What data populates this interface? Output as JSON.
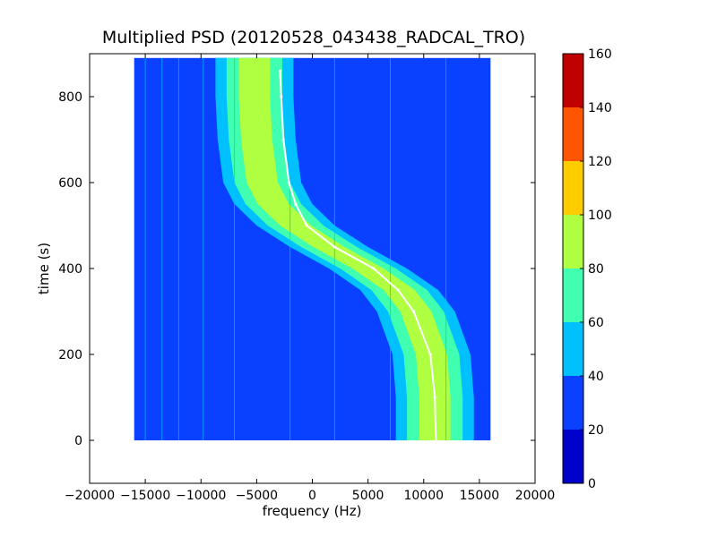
{
  "chart_data": {
    "type": "heatmap",
    "title": "Multiplied PSD (20120528_043438_RADCAL_TRO)",
    "xlabel": "frequency (Hz)",
    "ylabel": "time (s)",
    "xlim": [
      -20000,
      20000
    ],
    "ylim": [
      -100,
      900
    ],
    "x_ticks": [
      -20000,
      -15000,
      -10000,
      -5000,
      0,
      5000,
      10000,
      15000,
      20000
    ],
    "x_tick_labels": [
      "−20000",
      "−15000",
      "−10000",
      "−5000",
      "0",
      "5000",
      "10000",
      "15000",
      "20000"
    ],
    "y_ticks": [
      0,
      200,
      400,
      600,
      800
    ],
    "y_tick_labels": [
      "0",
      "200",
      "400",
      "600",
      "800"
    ],
    "data_extent": {
      "freq": [
        -16000,
        16000
      ],
      "time": [
        0,
        890
      ]
    },
    "background_level": 30,
    "band": {
      "description": "Doppler-shifted carrier trace (S-curve)",
      "center_freq_at_time": [
        {
          "time": 0,
          "freq": 11000
        },
        {
          "time": 100,
          "freq": 11000
        },
        {
          "time": 200,
          "freq": 10700
        },
        {
          "time": 300,
          "freq": 9300
        },
        {
          "time": 350,
          "freq": 7800
        },
        {
          "time": 400,
          "freq": 5000
        },
        {
          "time": 450,
          "freq": 1500
        },
        {
          "time": 500,
          "freq": -1500
        },
        {
          "time": 550,
          "freq": -3500
        },
        {
          "time": 600,
          "freq": -4500
        },
        {
          "time": 700,
          "freq": -5000
        },
        {
          "time": 800,
          "freq": -5200
        },
        {
          "time": 890,
          "freq": -5200
        }
      ],
      "levels": [
        {
          "half_width_hz": 3500,
          "level": 50
        },
        {
          "half_width_hz": 2500,
          "level": 70
        },
        {
          "half_width_hz": 1400,
          "level": 90
        }
      ]
    },
    "predicted_track": [
      {
        "time": 0,
        "freq": 11100
      },
      {
        "time": 100,
        "freq": 11000
      },
      {
        "time": 200,
        "freq": 10600
      },
      {
        "time": 300,
        "freq": 9100
      },
      {
        "time": 350,
        "freq": 7700
      },
      {
        "time": 400,
        "freq": 5500
      },
      {
        "time": 450,
        "freq": 2000
      },
      {
        "time": 500,
        "freq": -500
      },
      {
        "time": 550,
        "freq": -1500
      },
      {
        "time": 600,
        "freq": -2100
      },
      {
        "time": 700,
        "freq": -2600
      },
      {
        "time": 800,
        "freq": -2800
      },
      {
        "time": 860,
        "freq": -2900
      }
    ],
    "vertical_lines_hz": [
      -15000,
      -13500,
      -12000,
      -9800,
      -7000,
      -2000,
      2000,
      7000,
      12000
    ],
    "colorbar": {
      "min": 0,
      "max": 160,
      "ticks": [
        0,
        20,
        40,
        60,
        80,
        100,
        120,
        140,
        160
      ],
      "bins": [
        {
          "from": 0,
          "to": 20,
          "color": "#0000cd"
        },
        {
          "from": 20,
          "to": 40,
          "color": "#0a40ff"
        },
        {
          "from": 40,
          "to": 60,
          "color": "#00c0ff"
        },
        {
          "from": 60,
          "to": 80,
          "color": "#40ffb0"
        },
        {
          "from": 80,
          "to": 100,
          "color": "#b0ff40"
        },
        {
          "from": 100,
          "to": 120,
          "color": "#ffcc00"
        },
        {
          "from": 120,
          "to": 140,
          "color": "#ff5500"
        },
        {
          "from": 140,
          "to": 160,
          "color": "#c00000"
        }
      ]
    }
  }
}
